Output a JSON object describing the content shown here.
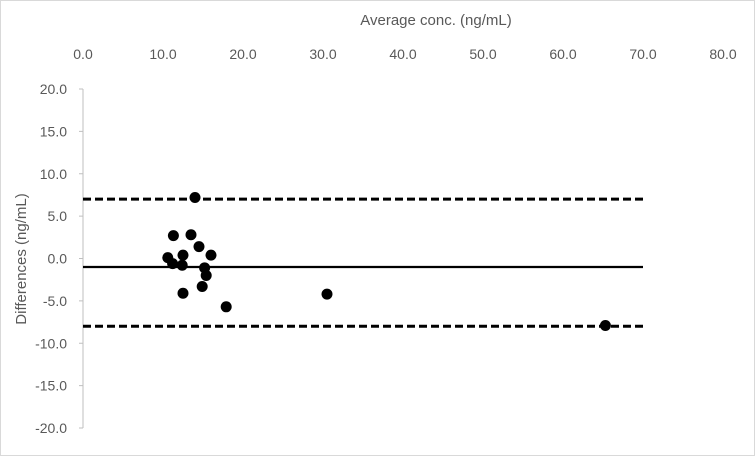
{
  "chart_data": {
    "type": "scatter",
    "title": "",
    "xlabel": "Average conc. (ng/mL)",
    "ylabel": "Differences (ng/mL)",
    "xlim": [
      0,
      80
    ],
    "ylim": [
      -20,
      20
    ],
    "x_tick_labels": [
      "0.0",
      "10.0",
      "20.0",
      "30.0",
      "40.0",
      "50.0",
      "60.0",
      "70.0",
      "80.0"
    ],
    "y_tick_labels": [
      "20.0",
      "15.0",
      "10.0",
      "5.0",
      "0.0",
      "-5.0",
      "-10.0",
      "-15.0",
      "-20.0"
    ],
    "x_axis_position": "top",
    "grid": false,
    "legend": "none",
    "marker_color": "#000000",
    "points": [
      {
        "x": 10.6,
        "y": 0.1
      },
      {
        "x": 11.2,
        "y": -0.6
      },
      {
        "x": 11.3,
        "y": 2.7
      },
      {
        "x": 12.4,
        "y": -0.8
      },
      {
        "x": 12.5,
        "y": 0.4
      },
      {
        "x": 12.5,
        "y": -4.1
      },
      {
        "x": 13.5,
        "y": 2.8
      },
      {
        "x": 14.0,
        "y": 7.2
      },
      {
        "x": 14.5,
        "y": 1.4
      },
      {
        "x": 14.9,
        "y": -3.3
      },
      {
        "x": 15.2,
        "y": -1.1
      },
      {
        "x": 15.4,
        "y": -2.0
      },
      {
        "x": 16.0,
        "y": 0.4
      },
      {
        "x": 17.9,
        "y": -5.7
      },
      {
        "x": 30.5,
        "y": -4.2
      },
      {
        "x": 65.3,
        "y": -7.9
      }
    ],
    "reference_lines": [
      {
        "kind": "mean",
        "y": -1.0,
        "style": "solid",
        "x_range": [
          0,
          70
        ]
      },
      {
        "kind": "upper-limit",
        "y": 7.0,
        "style": "dashed",
        "x_range": [
          0,
          70
        ]
      },
      {
        "kind": "lower-limit",
        "y": -8.0,
        "style": "dashed",
        "x_range": [
          0,
          70
        ]
      }
    ]
  }
}
